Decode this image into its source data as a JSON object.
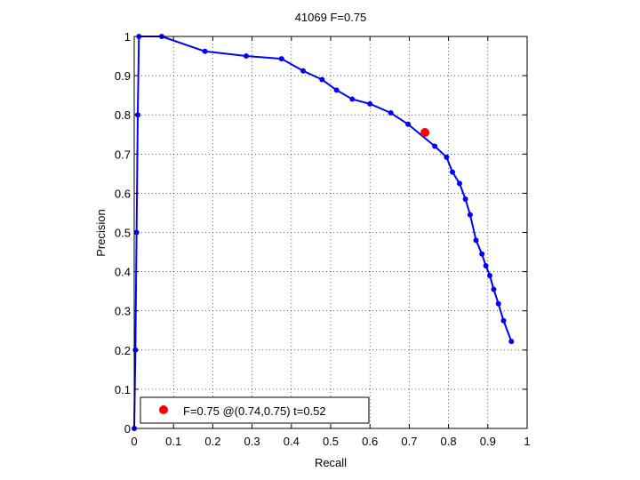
{
  "chart_data": {
    "type": "line",
    "title": "41069 F=0.75",
    "xlabel": "Recall",
    "ylabel": "Precision",
    "xlim": [
      0,
      1
    ],
    "ylim": [
      0,
      1
    ],
    "grid": true,
    "x_ticks": [
      "0",
      "0.1",
      "0.2",
      "0.3",
      "0.4",
      "0.5",
      "0.6",
      "0.7",
      "0.8",
      "0.9",
      "1"
    ],
    "y_ticks": [
      "0",
      "0.1",
      "0.2",
      "0.3",
      "0.4",
      "0.5",
      "0.6",
      "0.7",
      "0.8",
      "0.9",
      "1"
    ],
    "series": [
      {
        "color": "#0000ff",
        "marker": "dot",
        "points": [
          [
            0.0,
            0.0
          ],
          [
            0.003,
            0.2
          ],
          [
            0.006,
            0.5
          ],
          [
            0.009,
            0.8
          ],
          [
            0.012,
            1.0
          ],
          [
            0.07,
            1.0
          ],
          [
            0.18,
            0.962
          ],
          [
            0.285,
            0.95
          ],
          [
            0.375,
            0.943
          ],
          [
            0.43,
            0.912
          ],
          [
            0.478,
            0.89
          ],
          [
            0.515,
            0.863
          ],
          [
            0.555,
            0.84
          ],
          [
            0.6,
            0.828
          ],
          [
            0.653,
            0.805
          ],
          [
            0.697,
            0.776
          ],
          [
            0.765,
            0.72
          ],
          [
            0.795,
            0.692
          ],
          [
            0.81,
            0.654
          ],
          [
            0.828,
            0.625
          ],
          [
            0.843,
            0.585
          ],
          [
            0.855,
            0.545
          ],
          [
            0.87,
            0.48
          ],
          [
            0.885,
            0.445
          ],
          [
            0.895,
            0.415
          ],
          [
            0.905,
            0.39
          ],
          [
            0.915,
            0.355
          ],
          [
            0.927,
            0.318
          ],
          [
            0.94,
            0.275
          ],
          [
            0.96,
            0.222
          ]
        ]
      }
    ],
    "highlight": {
      "x": 0.74,
      "y": 0.755,
      "color": "#ff0000",
      "legend_label": "F=0.75 @(0.74,0.75) t=0.52"
    },
    "legend_placement": "bottom-left"
  }
}
